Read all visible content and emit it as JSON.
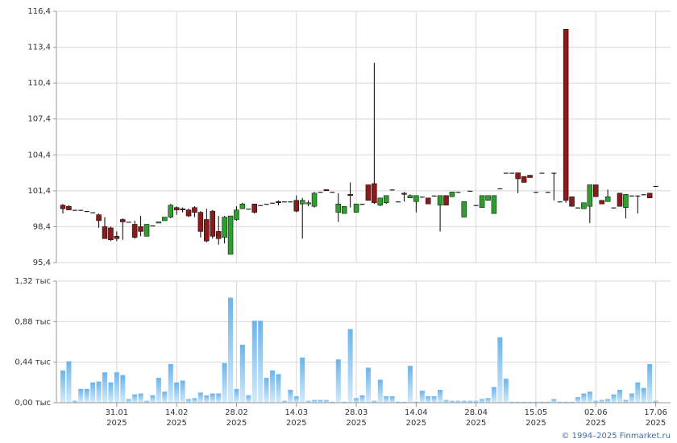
{
  "footer": "© 1994–2025 Finmarket.ru",
  "chart_data": [
    {
      "type": "candlestick",
      "up_color": "#2e9e2e",
      "down_color": "#8b1a1a",
      "open": [
        100.2,
        100.1,
        99.8,
        99.8,
        99.7,
        99.6,
        99.4,
        98.4,
        98.3,
        97.6,
        99.0,
        98.8,
        98.6,
        98.4,
        97.6,
        98.5,
        98.7,
        98.9,
        99.2,
        100.0,
        99.9,
        99.8,
        100.0,
        99.6,
        99.0,
        99.7,
        98.0,
        97.5,
        96.1,
        99.0,
        99.9,
        99.9,
        100.3,
        100.2,
        100.3,
        100.4,
        100.5,
        100.5,
        100.5,
        100.6,
        100.3,
        100.3,
        100.1,
        101.3,
        101.5,
        101.3,
        99.6,
        99.5,
        101.1,
        99.6,
        100.3,
        101.9,
        102.0,
        100.2,
        100.4,
        101.5,
        100.5,
        101.2,
        100.8,
        100.5,
        100.9,
        100.8,
        101.0,
        100.2,
        101.0,
        100.9,
        101.3,
        99.2,
        101.4,
        100.2,
        100.0,
        100.6,
        99.5,
        101.6,
        102.9,
        102.9,
        102.9,
        102.6,
        102.7,
        101.3,
        102.9,
        101.3,
        102.9,
        100.5,
        114.9,
        100.9,
        100.0,
        99.9,
        100.1,
        101.9,
        100.6,
        100.5,
        100.0,
        101.2,
        100.0,
        101.0,
        101.0,
        101.1,
        101.2,
        101.8
      ],
      "high": [
        100.3,
        100.2,
        99.8,
        99.8,
        99.7,
        99.6,
        99.5,
        99.2,
        98.4,
        98.0,
        99.1,
        98.8,
        98.9,
        99.3,
        98.6,
        98.5,
        98.8,
        99.2,
        100.3,
        100.1,
        100.0,
        99.9,
        100.1,
        99.7,
        99.9,
        99.8,
        99.3,
        99.3,
        99.3,
        100.1,
        100.4,
        99.9,
        100.3,
        100.2,
        100.3,
        100.4,
        100.6,
        100.5,
        100.5,
        101.0,
        100.8,
        100.6,
        101.3,
        101.3,
        101.5,
        101.3,
        101.2,
        100.1,
        102.1,
        100.3,
        100.3,
        101.9,
        112.1,
        100.8,
        101.0,
        101.5,
        100.5,
        101.3,
        101.1,
        101.0,
        100.9,
        100.8,
        101.0,
        101.0,
        101.0,
        101.3,
        101.3,
        100.5,
        101.4,
        100.2,
        101.0,
        101.0,
        101.0,
        101.6,
        102.9,
        102.9,
        102.9,
        102.6,
        102.7,
        101.3,
        102.9,
        101.3,
        102.9,
        100.5,
        114.9,
        100.9,
        100.0,
        100.4,
        101.9,
        101.9,
        100.6,
        101.5,
        100.0,
        101.2,
        101.1,
        101.0,
        101.0,
        101.1,
        101.2,
        101.8
      ],
      "low": [
        99.5,
        99.8,
        99.8,
        99.8,
        99.7,
        99.6,
        98.3,
        97.4,
        97.2,
        97.2,
        97.3,
        98.8,
        97.4,
        97.6,
        97.6,
        98.5,
        98.7,
        98.9,
        99.1,
        99.4,
        99.6,
        99.2,
        99.2,
        97.5,
        97.1,
        97.4,
        96.9,
        97.0,
        96.1,
        98.9,
        99.9,
        99.9,
        99.5,
        100.2,
        100.3,
        100.4,
        100.2,
        100.5,
        100.5,
        99.6,
        97.4,
        100.1,
        100.0,
        101.3,
        101.4,
        101.3,
        98.8,
        99.5,
        100.0,
        99.6,
        100.3,
        100.6,
        100.3,
        100.1,
        100.3,
        101.5,
        100.5,
        100.5,
        100.8,
        99.6,
        100.9,
        100.3,
        101.0,
        98.0,
        100.2,
        100.9,
        101.3,
        99.2,
        101.4,
        100.2,
        100.0,
        100.6,
        99.5,
        101.6,
        102.9,
        102.9,
        101.2,
        102.1,
        102.5,
        101.3,
        102.9,
        101.3,
        100.6,
        100.5,
        100.4,
        100.1,
        100.0,
        99.9,
        98.7,
        100.9,
        100.3,
        100.5,
        100.0,
        100.1,
        99.1,
        101.0,
        99.5,
        101.1,
        100.8,
        101.8
      ],
      "close": [
        99.9,
        99.8,
        99.8,
        99.8,
        99.7,
        99.6,
        98.9,
        97.4,
        97.3,
        97.4,
        98.8,
        98.8,
        97.5,
        98.0,
        98.6,
        98.5,
        98.8,
        99.2,
        100.2,
        99.8,
        99.8,
        99.3,
        99.6,
        98.0,
        97.2,
        97.6,
        97.4,
        99.2,
        99.3,
        99.8,
        100.3,
        99.9,
        99.6,
        100.2,
        100.3,
        100.4,
        100.4,
        100.5,
        100.5,
        99.7,
        100.6,
        100.4,
        101.2,
        101.3,
        101.4,
        101.3,
        100.3,
        100.1,
        101.0,
        100.3,
        100.3,
        100.6,
        100.4,
        100.8,
        101.0,
        101.5,
        100.5,
        101.1,
        101.0,
        101.0,
        100.9,
        100.3,
        101.0,
        101.0,
        100.2,
        101.3,
        101.3,
        100.5,
        101.4,
        100.2,
        101.0,
        101.0,
        101.0,
        101.6,
        102.9,
        102.9,
        102.4,
        102.1,
        102.5,
        101.3,
        102.9,
        101.3,
        102.9,
        100.5,
        100.6,
        100.1,
        100.0,
        100.4,
        101.9,
        100.9,
        100.3,
        100.9,
        100.0,
        100.1,
        101.1,
        101.0,
        101.0,
        101.1,
        100.8,
        101.8
      ],
      "ylim": [
        95.4,
        116.4
      ],
      "yticks": [
        {
          "value": 95.4,
          "label": "95,4"
        },
        {
          "value": 98.4,
          "label": "98,4"
        },
        {
          "value": 101.4,
          "label": "101,4"
        },
        {
          "value": 104.4,
          "label": "104,4"
        },
        {
          "value": 107.4,
          "label": "107,4"
        },
        {
          "value": 110.4,
          "label": "110,4"
        },
        {
          "value": 113.4,
          "label": "113,4"
        },
        {
          "value": 116.4,
          "label": "116,4"
        }
      ],
      "grid": true
    },
    {
      "type": "bar",
      "color": "#8cc8f2",
      "categories": [
        null,
        null,
        null,
        null,
        null,
        null,
        null,
        null,
        null,
        "31.01\n2025",
        null,
        null,
        null,
        null,
        null,
        null,
        null,
        null,
        null,
        "14.02\n2025",
        null,
        null,
        null,
        null,
        null,
        null,
        null,
        null,
        null,
        "28.02\n2025",
        null,
        null,
        null,
        null,
        null,
        null,
        null,
        null,
        null,
        "14.03\n2025",
        null,
        null,
        null,
        null,
        null,
        null,
        null,
        null,
        null,
        "28.03\n2025",
        null,
        null,
        null,
        null,
        null,
        null,
        null,
        null,
        null,
        "14.04\n2025",
        null,
        null,
        null,
        null,
        null,
        null,
        null,
        null,
        null,
        "28.04\n2025",
        null,
        null,
        null,
        null,
        null,
        null,
        null,
        null,
        null,
        "15.05\n2025",
        null,
        null,
        null,
        null,
        null,
        null,
        null,
        null,
        null,
        "02.06\n2025",
        null,
        null,
        null,
        null,
        null,
        null,
        null,
        null,
        null,
        "17.06\n2025"
      ],
      "values": [
        0.35,
        0.45,
        0.02,
        0.15,
        0.15,
        0.22,
        0.23,
        0.33,
        0.22,
        0.33,
        0.3,
        0.04,
        0.09,
        0.1,
        0.02,
        0.08,
        0.27,
        0.12,
        0.42,
        0.22,
        0.24,
        0.04,
        0.05,
        0.11,
        0.08,
        0.1,
        0.1,
        0.43,
        1.14,
        0.15,
        0.63,
        0.08,
        0.89,
        0.89,
        0.27,
        0.35,
        0.31,
        0.02,
        0.14,
        0.07,
        0.49,
        0.02,
        0.03,
        0.03,
        0.03,
        0.01,
        0.47,
        0.01,
        0.8,
        0.05,
        0.08,
        0.38,
        0.02,
        0.25,
        0.07,
        0.07,
        0.01,
        0.01,
        0.4,
        0.01,
        0.13,
        0.07,
        0.07,
        0.14,
        0.03,
        0.02,
        0.02,
        0.02,
        0.02,
        0.02,
        0.04,
        0.05,
        0.17,
        0.71,
        0.26,
        0.01,
        0.01,
        0.01,
        0.01,
        0.01,
        0.01,
        0.01,
        0.04,
        0.01,
        0.01,
        0.01,
        0.06,
        0.1,
        0.12,
        0.02,
        0.03,
        0.04,
        0.09,
        0.14,
        0.03,
        0.1,
        0.22,
        0.16,
        0.42,
        0.02
      ],
      "ylim": [
        0,
        1.32
      ],
      "yticks": [
        {
          "value": 0,
          "label": "0,00 тыс"
        },
        {
          "value": 0.44,
          "label": "0,44 тыс"
        },
        {
          "value": 0.88,
          "label": "0,88 тыс"
        },
        {
          "value": 1.32,
          "label": "1,32 тыс"
        }
      ],
      "grid": true
    }
  ]
}
